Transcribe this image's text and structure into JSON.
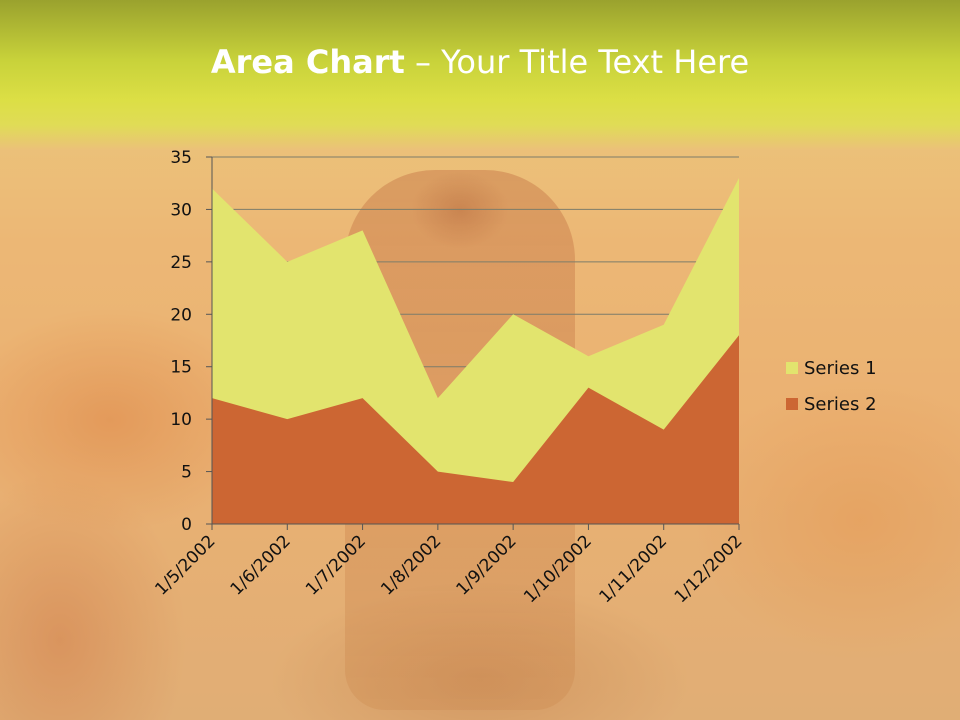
{
  "slide": {
    "title_bold": "Area Chart",
    "title_rest": " – Your Title Text Here"
  },
  "chart_data": {
    "type": "area",
    "categories": [
      "1/5/2002",
      "1/6/2002",
      "1/7/2002",
      "1/8/2002",
      "1/9/2002",
      "1/10/2002",
      "1/11/2002",
      "1/12/2002"
    ],
    "series": [
      {
        "name": "Series 1",
        "values": [
          32,
          25,
          28,
          12,
          20,
          16,
          19,
          33
        ],
        "color": "#e2e46e"
      },
      {
        "name": "Series 2",
        "values": [
          12,
          10,
          12,
          5,
          4,
          13,
          9,
          18
        ],
        "color": "#cc6633"
      }
    ],
    "ylim": [
      0,
      35
    ],
    "yticks": [
      0,
      5,
      10,
      15,
      20,
      25,
      30,
      35
    ],
    "grid": true,
    "legend": "right"
  }
}
